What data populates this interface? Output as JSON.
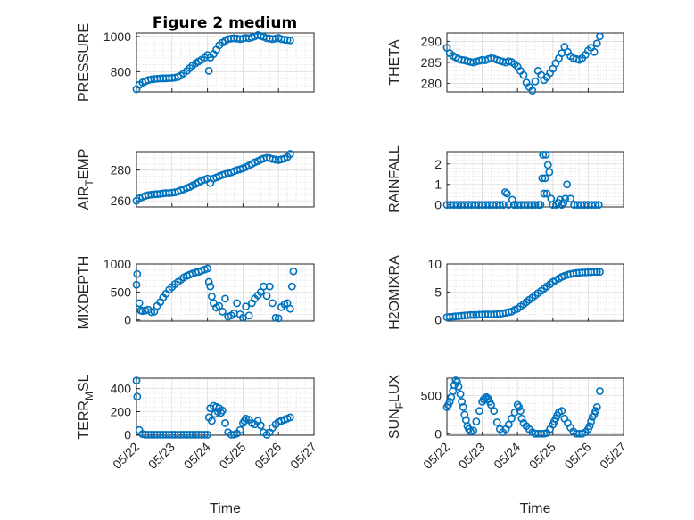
{
  "title": "Figure 2 medium",
  "marker_color": "#0072BD",
  "x_ticks": [
    "05/22",
    "05/23",
    "05/24",
    "05/25",
    "05/26",
    "05/27"
  ],
  "x_label": "Time",
  "chart_data": [
    {
      "type": "scatter",
      "name": "pressure",
      "ylabel": "PRESSURE",
      "ylabel_sub": "",
      "ylim": [
        685,
        1020
      ],
      "yticks": [
        800,
        1000
      ],
      "grid": true,
      "x_unit": "days since 05/22 00:00",
      "x": [
        0.0,
        0.08,
        0.17,
        0.25,
        0.33,
        0.42,
        0.5,
        0.58,
        0.67,
        0.75,
        0.83,
        0.92,
        1.0,
        1.08,
        1.17,
        1.25,
        1.33,
        1.42,
        1.5,
        1.58,
        1.67,
        1.75,
        1.83,
        1.92,
        2.0,
        2.04,
        2.08,
        2.17,
        2.25,
        2.33,
        2.42,
        2.5,
        2.58,
        2.67,
        2.75,
        2.83,
        2.92,
        3.0,
        3.08,
        3.17,
        3.25,
        3.33,
        3.42,
        3.5,
        3.58,
        3.67,
        3.75,
        3.83,
        3.92,
        4.0,
        4.08,
        4.17,
        4.25,
        4.33
      ],
      "y": [
        700,
        725,
        738,
        745,
        752,
        756,
        758,
        760,
        761,
        762,
        762,
        763,
        764,
        766,
        770,
        778,
        790,
        805,
        820,
        835,
        848,
        858,
        868,
        880,
        895,
        805,
        880,
        900,
        925,
        950,
        965,
        975,
        985,
        988,
        990,
        988,
        985,
        988,
        992,
        990,
        995,
        1000,
        1008,
        1003,
        998,
        990,
        988,
        985,
        988,
        992,
        985,
        982,
        980,
        978
      ]
    },
    {
      "type": "scatter",
      "name": "theta",
      "ylabel": "THETA",
      "ylabel_sub": "",
      "ylim": [
        278,
        292
      ],
      "yticks": [
        280,
        285,
        290
      ],
      "grid": true,
      "x_unit": "days since 05/22 00:00",
      "x": [
        0.0,
        0.08,
        0.17,
        0.25,
        0.33,
        0.42,
        0.5,
        0.58,
        0.67,
        0.75,
        0.83,
        0.92,
        1.0,
        1.08,
        1.17,
        1.25,
        1.33,
        1.42,
        1.5,
        1.58,
        1.67,
        1.75,
        1.83,
        1.92,
        2.0,
        2.08,
        2.17,
        2.25,
        2.33,
        2.42,
        2.5,
        2.58,
        2.67,
        2.75,
        2.83,
        2.92,
        3.0,
        3.08,
        3.17,
        3.25,
        3.33,
        3.42,
        3.5,
        3.58,
        3.67,
        3.75,
        3.83,
        3.92,
        4.0,
        4.08,
        4.17,
        4.25,
        4.33
      ],
      "y": [
        288.5,
        287.2,
        286.6,
        286.2,
        285.8,
        285.6,
        285.5,
        285.3,
        285.1,
        285.0,
        285.2,
        285.4,
        285.6,
        285.5,
        285.8,
        286.0,
        285.9,
        285.6,
        285.4,
        285.2,
        285.0,
        285.3,
        285.1,
        284.6,
        284.0,
        283.0,
        282.0,
        280.2,
        279.2,
        278.3,
        280.5,
        283.0,
        282.0,
        280.8,
        281.5,
        282.5,
        283.5,
        284.8,
        286.0,
        287.2,
        288.7,
        287.5,
        286.5,
        286.0,
        285.8,
        285.6,
        286.0,
        286.8,
        287.8,
        288.5,
        287.5,
        289.5,
        291.2
      ]
    },
    {
      "type": "scatter",
      "name": "air_temp",
      "ylabel": "AIR",
      "ylabel_sub": "T",
      "ylabel_suffix": "EMP",
      "ylim": [
        256,
        292
      ],
      "yticks": [
        260,
        280
      ],
      "grid": true,
      "x_unit": "days since 05/22 00:00",
      "x": [
        0.0,
        0.08,
        0.17,
        0.25,
        0.33,
        0.42,
        0.5,
        0.58,
        0.67,
        0.75,
        0.83,
        0.92,
        1.0,
        1.08,
        1.17,
        1.25,
        1.33,
        1.42,
        1.5,
        1.58,
        1.67,
        1.75,
        1.83,
        1.92,
        2.0,
        2.08,
        2.17,
        2.25,
        2.33,
        2.42,
        2.5,
        2.58,
        2.67,
        2.75,
        2.83,
        2.92,
        3.0,
        3.08,
        3.17,
        3.25,
        3.33,
        3.42,
        3.5,
        3.58,
        3.67,
        3.75,
        3.83,
        3.92,
        4.0,
        4.08,
        4.17,
        4.25,
        4.33
      ],
      "y": [
        260.0,
        261.5,
        262.5,
        263.2,
        263.7,
        264.0,
        264.2,
        264.3,
        264.5,
        264.8,
        265.0,
        265.0,
        265.2,
        265.5,
        266.0,
        266.8,
        267.5,
        268.3,
        269.0,
        270.0,
        271.0,
        272.0,
        273.0,
        273.8,
        274.5,
        271.5,
        274.5,
        275.2,
        276.0,
        276.8,
        277.3,
        277.8,
        278.5,
        279.3,
        280.0,
        280.5,
        281.2,
        282.0,
        283.0,
        284.0,
        285.0,
        285.8,
        286.8,
        287.5,
        288.0,
        287.8,
        287.2,
        286.8,
        286.5,
        287.0,
        287.5,
        288.5,
        290.5
      ]
    },
    {
      "type": "scatter",
      "name": "rainfall",
      "ylabel": "RAINFALL",
      "ylabel_sub": "",
      "ylim": [
        -0.1,
        2.6
      ],
      "yticks": [
        0,
        1,
        2
      ],
      "grid": true,
      "x_unit": "days since 05/22 00:00",
      "x": [
        0.0,
        0.1,
        0.2,
        0.3,
        0.4,
        0.5,
        0.6,
        0.7,
        0.8,
        0.9,
        1.0,
        1.1,
        1.2,
        1.3,
        1.4,
        1.5,
        1.6,
        1.65,
        1.7,
        1.75,
        1.85,
        1.9,
        2.0,
        2.1,
        2.2,
        2.3,
        2.4,
        2.5,
        2.6,
        2.65,
        2.7,
        2.72,
        2.75,
        2.78,
        2.8,
        2.83,
        2.86,
        2.9,
        2.95,
        3.0,
        3.1,
        3.15,
        3.2,
        3.25,
        3.3,
        3.35,
        3.4,
        3.5,
        3.6,
        3.7,
        3.8,
        3.9,
        4.0,
        4.1,
        4.2,
        4.3
      ],
      "y": [
        0,
        0,
        0,
        0,
        0,
        0,
        0,
        0,
        0,
        0,
        0,
        0,
        0,
        0,
        0,
        0,
        0,
        0.62,
        0.55,
        0,
        0.25,
        0,
        0,
        0,
        0,
        0,
        0,
        0,
        0,
        0,
        1.3,
        2.45,
        0.55,
        1.3,
        2.45,
        0.55,
        1.95,
        1.6,
        0.3,
        0,
        0,
        0.1,
        0.25,
        0,
        0.1,
        0.3,
        1.0,
        0.3,
        0,
        0,
        0,
        0,
        0,
        0,
        0,
        0
      ]
    },
    {
      "type": "scatter",
      "name": "mixdepth",
      "ylabel": "MIXDEPTH",
      "ylabel_sub": "",
      "ylim": [
        -20,
        1000
      ],
      "yticks": [
        0,
        500,
        1000
      ],
      "grid": true,
      "x_unit": "days since 05/22 00:00",
      "x": [
        0.0,
        0.02,
        0.08,
        0.12,
        0.17,
        0.25,
        0.33,
        0.42,
        0.5,
        0.58,
        0.67,
        0.75,
        0.83,
        0.92,
        1.0,
        1.08,
        1.17,
        1.25,
        1.33,
        1.42,
        1.5,
        1.58,
        1.67,
        1.75,
        1.83,
        1.92,
        2.0,
        2.04,
        2.08,
        2.12,
        2.17,
        2.25,
        2.33,
        2.42,
        2.5,
        2.58,
        2.67,
        2.75,
        2.83,
        2.92,
        3.0,
        3.08,
        3.17,
        3.25,
        3.33,
        3.42,
        3.5,
        3.58,
        3.67,
        3.75,
        3.83,
        3.92,
        4.0,
        4.08,
        4.17,
        4.25,
        4.33,
        4.38,
        4.42
      ],
      "y": [
        630,
        820,
        300,
        170,
        160,
        170,
        185,
        140,
        150,
        250,
        320,
        400,
        470,
        540,
        590,
        640,
        680,
        720,
        760,
        790,
        810,
        830,
        850,
        860,
        880,
        900,
        920,
        680,
        600,
        420,
        300,
        220,
        250,
        150,
        380,
        60,
        80,
        120,
        300,
        100,
        40,
        240,
        80,
        300,
        380,
        440,
        500,
        600,
        430,
        600,
        300,
        40,
        30,
        230,
        280,
        300,
        200,
        600,
        870
      ]
    },
    {
      "type": "scatter",
      "name": "h2omixra",
      "ylabel": "H2OMIXRA",
      "ylabel_sub": "",
      "ylim": [
        -0.2,
        10
      ],
      "yticks": [
        0,
        5,
        10
      ],
      "grid": true,
      "x_unit": "days since 05/22 00:00",
      "x": [
        0.0,
        0.08,
        0.17,
        0.25,
        0.33,
        0.42,
        0.5,
        0.58,
        0.67,
        0.75,
        0.83,
        0.92,
        1.0,
        1.08,
        1.17,
        1.25,
        1.33,
        1.42,
        1.5,
        1.58,
        1.67,
        1.75,
        1.83,
        1.92,
        2.0,
        2.08,
        2.17,
        2.25,
        2.33,
        2.42,
        2.5,
        2.58,
        2.67,
        2.75,
        2.83,
        2.92,
        3.0,
        3.08,
        3.17,
        3.25,
        3.33,
        3.42,
        3.5,
        3.58,
        3.67,
        3.75,
        3.83,
        3.92,
        4.0,
        4.08,
        4.17,
        4.25,
        4.33
      ],
      "y": [
        0.5,
        0.55,
        0.6,
        0.65,
        0.7,
        0.75,
        0.8,
        0.85,
        0.9,
        0.9,
        0.9,
        0.95,
        0.95,
        1.0,
        1.0,
        0.95,
        1.0,
        1.05,
        1.1,
        1.2,
        1.3,
        1.4,
        1.5,
        1.8,
        2.0,
        2.4,
        2.8,
        3.2,
        3.6,
        4.0,
        4.4,
        4.8,
        5.2,
        5.6,
        6.0,
        6.4,
        6.8,
        7.1,
        7.4,
        7.7,
        7.9,
        8.1,
        8.2,
        8.3,
        8.4,
        8.45,
        8.5,
        8.5,
        8.55,
        8.55,
        8.6,
        8.6,
        8.6
      ]
    },
    {
      "type": "scatter",
      "name": "terr_msl",
      "ylabel": "TERR",
      "ylabel_sub": "M",
      "ylabel_suffix": "SL",
      "ylim": [
        -5,
        490
      ],
      "yticks": [
        0,
        200,
        400
      ],
      "grid": true,
      "x_unit": "days since 05/22 00:00",
      "x": [
        0.0,
        0.02,
        0.08,
        0.17,
        0.25,
        0.33,
        0.42,
        0.5,
        0.58,
        0.67,
        0.75,
        0.83,
        0.92,
        1.0,
        1.08,
        1.17,
        1.25,
        1.33,
        1.42,
        1.5,
        1.58,
        1.67,
        1.75,
        1.83,
        1.92,
        2.0,
        2.04,
        2.08,
        2.12,
        2.17,
        2.21,
        2.25,
        2.29,
        2.33,
        2.38,
        2.42,
        2.5,
        2.58,
        2.67,
        2.75,
        2.83,
        2.92,
        3.0,
        3.04,
        3.08,
        3.17,
        3.25,
        3.33,
        3.42,
        3.5,
        3.58,
        3.67,
        3.75,
        3.83,
        3.92,
        4.0,
        4.08,
        4.17,
        4.25,
        4.33
      ],
      "y": [
        470,
        330,
        40,
        5,
        0,
        0,
        0,
        0,
        0,
        0,
        0,
        0,
        0,
        0,
        0,
        0,
        0,
        0,
        0,
        0,
        0,
        0,
        0,
        0,
        0,
        0,
        150,
        230,
        120,
        250,
        180,
        240,
        200,
        230,
        190,
        210,
        100,
        20,
        0,
        0,
        10,
        40,
        100,
        120,
        140,
        130,
        100,
        90,
        120,
        80,
        20,
        0,
        20,
        60,
        90,
        110,
        120,
        130,
        140,
        150
      ]
    },
    {
      "type": "scatter",
      "name": "sun_flux",
      "ylabel": "SUN",
      "ylabel_sub": "F",
      "ylabel_suffix": "LUX",
      "ylim": [
        -20,
        730
      ],
      "yticks": [
        0,
        500
      ],
      "grid": true,
      "x_unit": "days since 05/22 00:00",
      "x": [
        0.0,
        0.04,
        0.08,
        0.12,
        0.17,
        0.21,
        0.25,
        0.29,
        0.33,
        0.38,
        0.42,
        0.46,
        0.5,
        0.54,
        0.58,
        0.62,
        0.67,
        0.75,
        0.83,
        0.92,
        1.0,
        1.04,
        1.08,
        1.12,
        1.17,
        1.21,
        1.25,
        1.33,
        1.42,
        1.5,
        1.58,
        1.67,
        1.75,
        1.83,
        1.92,
        2.0,
        2.04,
        2.08,
        2.12,
        2.17,
        2.25,
        2.33,
        2.42,
        2.5,
        2.58,
        2.67,
        2.75,
        2.83,
        2.92,
        3.0,
        3.04,
        3.08,
        3.12,
        3.17,
        3.25,
        3.33,
        3.42,
        3.5,
        3.58,
        3.67,
        3.75,
        3.83,
        3.92,
        4.0,
        4.04,
        4.08,
        4.12,
        4.17,
        4.21,
        4.25,
        4.33
      ],
      "y": [
        350,
        380,
        420,
        480,
        560,
        640,
        700,
        680,
        620,
        520,
        420,
        350,
        250,
        180,
        100,
        60,
        30,
        40,
        160,
        300,
        420,
        450,
        470,
        480,
        460,
        420,
        380,
        300,
        150,
        60,
        20,
        60,
        120,
        200,
        280,
        380,
        350,
        300,
        200,
        140,
        100,
        60,
        20,
        0,
        0,
        0,
        0,
        10,
        60,
        120,
        160,
        200,
        240,
        280,
        300,
        200,
        140,
        80,
        30,
        0,
        0,
        0,
        20,
        60,
        100,
        160,
        220,
        260,
        300,
        350,
        560
      ]
    }
  ]
}
